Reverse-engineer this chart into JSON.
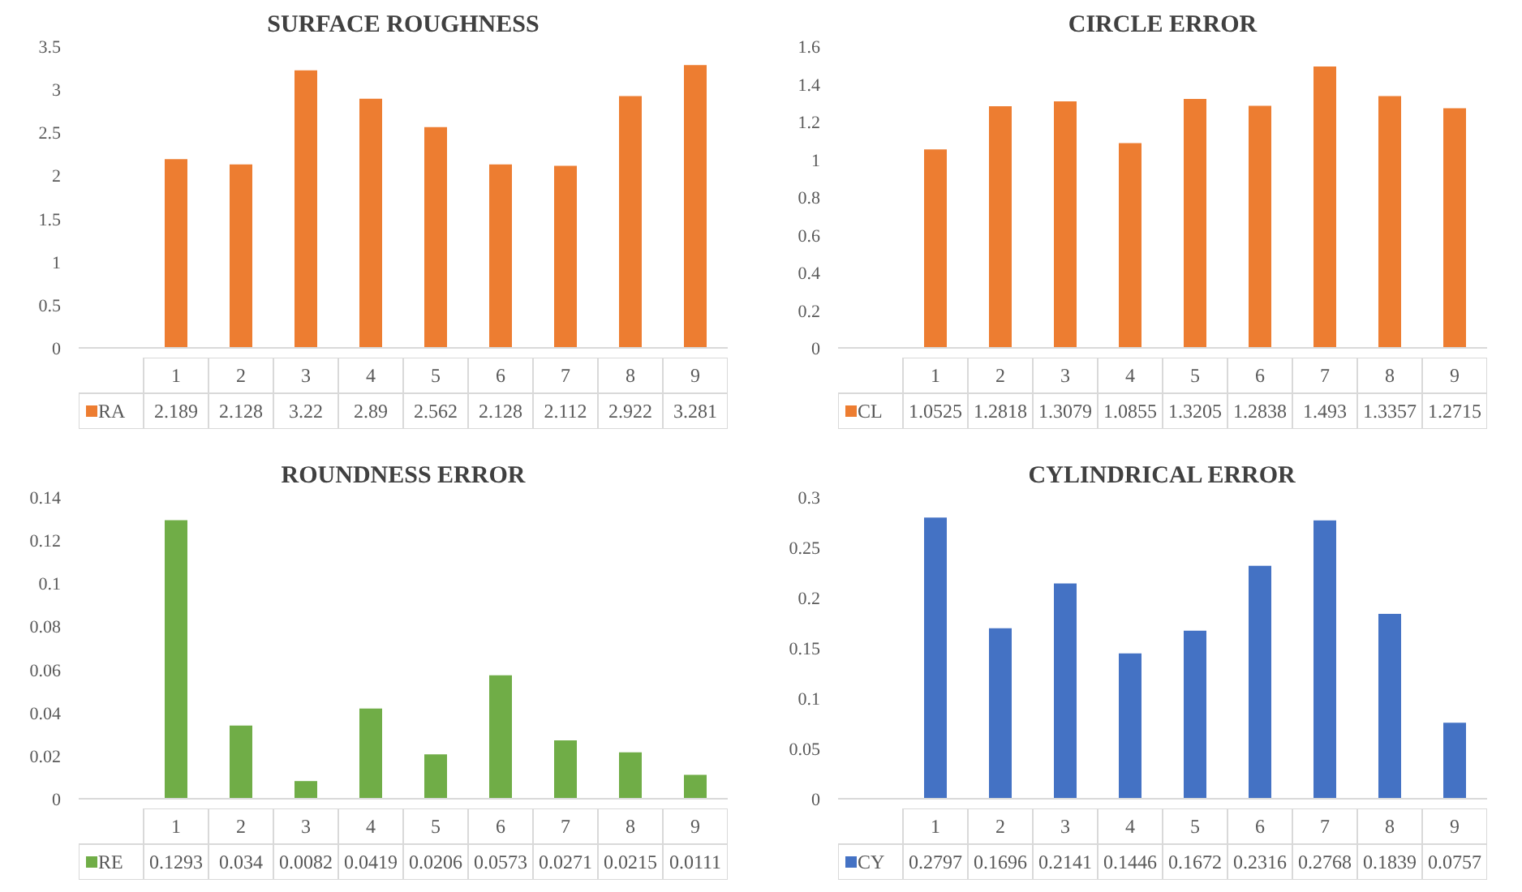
{
  "chart_data": [
    {
      "type": "bar",
      "title": "SURFACE ROUGHNESS",
      "categories": [
        "1",
        "2",
        "3",
        "4",
        "5",
        "6",
        "7",
        "8",
        "9"
      ],
      "series": [
        {
          "name": "RA",
          "color": "#ed7d31",
          "values": [
            2.189,
            2.128,
            3.22,
            2.89,
            2.562,
            2.128,
            2.112,
            2.922,
            3.281
          ]
        }
      ],
      "ylim": [
        0,
        3.5
      ],
      "yticks": [
        0,
        0.5,
        1,
        1.5,
        2,
        2.5,
        3,
        3.5
      ],
      "grid": false,
      "data_labels": true,
      "tick_labels": "y",
      "legend": "bottom"
    },
    {
      "type": "bar",
      "title": "CIRCLE ERROR",
      "categories": [
        "1",
        "2",
        "3",
        "4",
        "5",
        "6",
        "7",
        "8",
        "9"
      ],
      "series": [
        {
          "name": "CL",
          "color": "#ed7d31",
          "values": [
            1.0525,
            1.2818,
            1.3079,
            1.0855,
            1.3205,
            1.2838,
            1.493,
            1.3357,
            1.2715
          ]
        }
      ],
      "ylim": [
        0,
        1.6
      ],
      "yticks": [
        0,
        0.2,
        0.4,
        0.6,
        0.8,
        1,
        1.2,
        1.4,
        1.6
      ],
      "grid": false,
      "data_labels": true,
      "tick_labels": "y",
      "legend": "bottom"
    },
    {
      "type": "bar",
      "title": "ROUNDNESS ERROR",
      "categories": [
        "1",
        "2",
        "3",
        "4",
        "5",
        "6",
        "7",
        "8",
        "9"
      ],
      "series": [
        {
          "name": "RE",
          "color": "#70ad47",
          "values": [
            0.1293,
            0.034,
            0.0082,
            0.0419,
            0.0206,
            0.0573,
            0.0271,
            0.0215,
            0.0111
          ]
        }
      ],
      "ylim": [
        0,
        0.14
      ],
      "yticks": [
        0,
        0.02,
        0.04,
        0.06,
        0.08,
        0.1,
        0.12,
        0.14
      ],
      "grid": false,
      "data_labels": true,
      "tick_labels": "y",
      "legend": "bottom"
    },
    {
      "type": "bar",
      "title": "CYLINDRICAL ERROR",
      "categories": [
        "1",
        "2",
        "3",
        "4",
        "5",
        "6",
        "7",
        "8",
        "9"
      ],
      "series": [
        {
          "name": "CY",
          "color": "#4472c4",
          "values": [
            0.2797,
            0.1696,
            0.2141,
            0.1446,
            0.1672,
            0.2316,
            0.2768,
            0.1839,
            0.0757
          ]
        }
      ],
      "ylim": [
        0,
        0.3
      ],
      "yticks": [
        0,
        0.05,
        0.1,
        0.15,
        0.2,
        0.25,
        0.3
      ],
      "grid": false,
      "data_labels": true,
      "tick_labels": "y",
      "legend": "bottom"
    }
  ]
}
